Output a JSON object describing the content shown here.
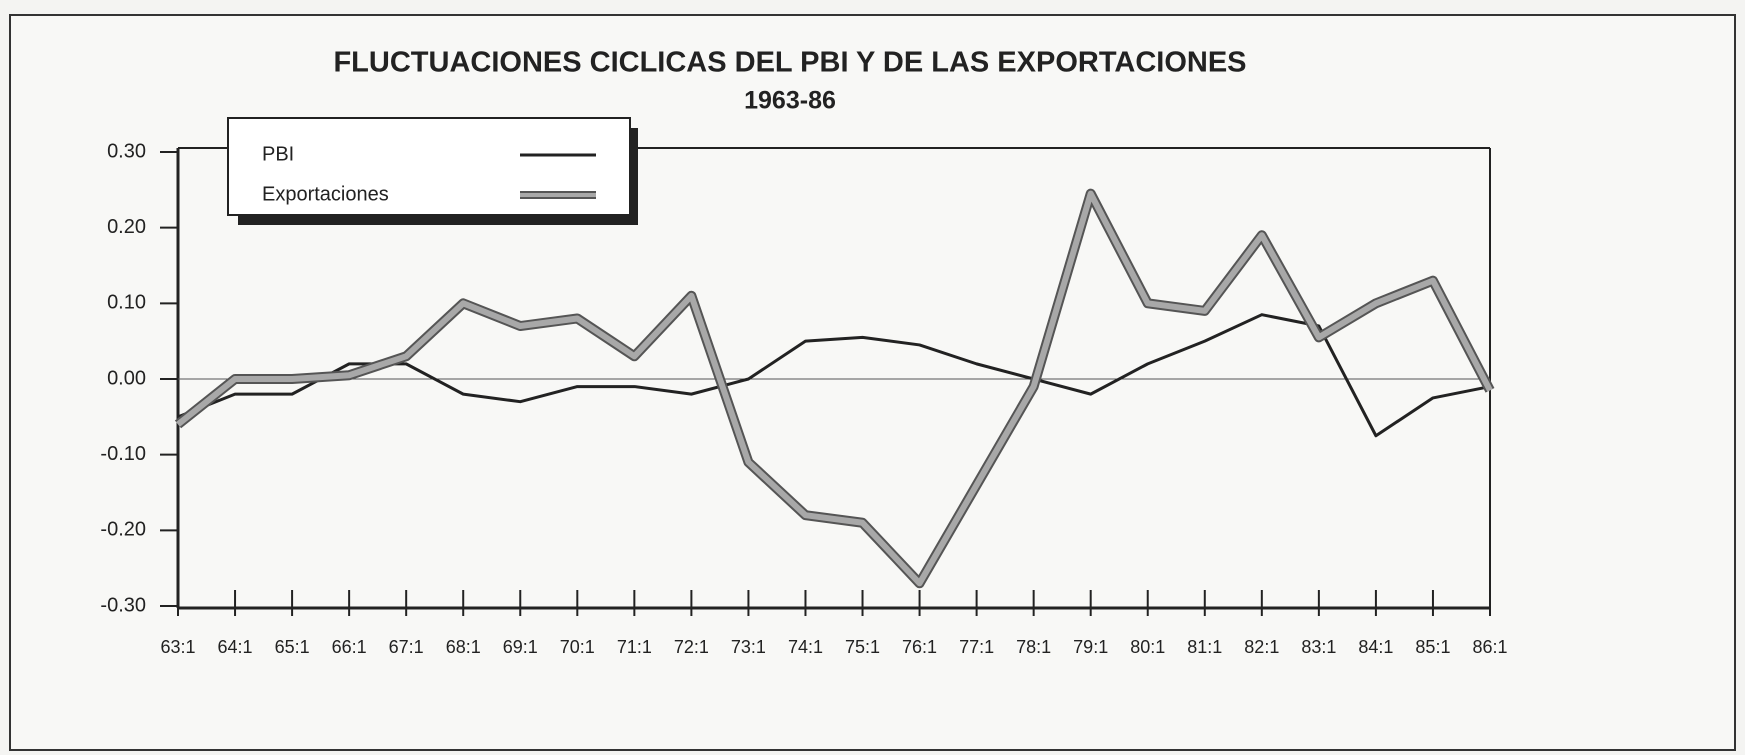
{
  "chart_data": {
    "type": "line",
    "title": "FLUCTUACIONES CICLICAS DEL PBI Y DE LAS EXPORTACIONES",
    "subtitle": "1963-86",
    "categories": [
      "63:1",
      "64:1",
      "65:1",
      "66:1",
      "67:1",
      "68:1",
      "69:1",
      "70:1",
      "71:1",
      "72:1",
      "73:1",
      "74:1",
      "75:1",
      "76:1",
      "77:1",
      "78:1",
      "79:1",
      "80:1",
      "81:1",
      "82:1",
      "83:1",
      "84:1",
      "85:1",
      "86:1"
    ],
    "series": [
      {
        "name": "PBI",
        "color": "#222222",
        "values": [
          -0.05,
          -0.02,
          -0.02,
          0.02,
          0.02,
          -0.02,
          -0.03,
          -0.01,
          -0.01,
          -0.02,
          0.0,
          0.05,
          0.055,
          0.045,
          0.02,
          0.0,
          -0.02,
          0.02,
          0.05,
          0.085,
          0.07,
          -0.075,
          -0.025,
          -0.01
        ]
      },
      {
        "name": "Exportaciones",
        "color": "#a8a8a8",
        "values": [
          -0.06,
          0.0,
          0.0,
          0.005,
          0.03,
          0.1,
          0.07,
          0.08,
          0.03,
          0.11,
          -0.11,
          -0.18,
          -0.19,
          -0.27,
          -0.14,
          -0.01,
          0.245,
          0.1,
          0.09,
          0.19,
          0.055,
          0.1,
          0.13,
          -0.015
        ]
      }
    ],
    "ylim": [
      -0.3,
      0.3
    ],
    "yticks": [
      {
        "value": 0.3,
        "label": "0.30"
      },
      {
        "value": 0.2,
        "label": "0.20"
      },
      {
        "value": 0.1,
        "label": "0.10"
      },
      {
        "value": 0,
        "label": "0.00"
      },
      {
        "value": -0.1,
        "label": "-0.10"
      },
      {
        "value": -0.2,
        "label": "-0.20"
      },
      {
        "value": -0.3,
        "label": "-0.30"
      }
    ],
    "legend": "top-left"
  }
}
